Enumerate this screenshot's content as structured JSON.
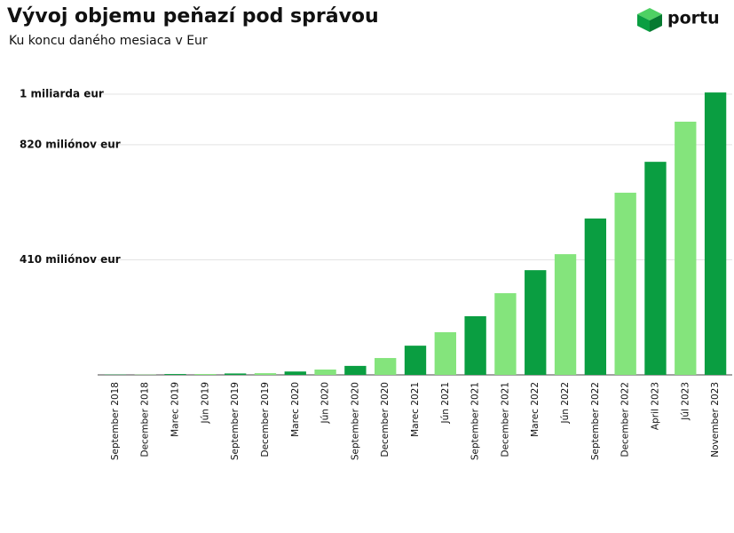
{
  "brand": "portu",
  "chart_data": {
    "type": "bar",
    "title": "Vývoj objemu peňazí pod správou",
    "subtitle": "Ku koncu daného mesiaca v Eur",
    "categories": [
      "September 2018",
      "December 2018",
      "Marec 2019",
      "Jún 2019",
      "September 2019",
      "December 2019",
      "Marec 2020",
      "Jún 2020",
      "September 2020",
      "December 2020",
      "Marec 2021",
      "Jún 2021",
      "September 2021",
      "December 2021",
      "Marec 2022",
      "Jún 2022",
      "September 2022",
      "December 2022",
      "April 2023",
      "Júl 2023",
      "November 2023"
    ],
    "values": [
      1,
      1,
      3,
      3,
      5,
      6,
      12,
      19,
      32,
      60,
      104,
      152,
      209,
      291,
      373,
      430,
      557,
      649,
      759,
      902,
      1006
    ],
    "colors": [
      "#0a9e41",
      "#84e47c"
    ],
    "ylim": [
      0,
      1000
    ],
    "yticks": [
      {
        "value": 410,
        "label": "410 miliónov eur"
      },
      {
        "value": 820,
        "label": "820 miliónov eur"
      },
      {
        "value": 1000,
        "label": "1 miliarda eur"
      }
    ],
    "grid": true
  }
}
